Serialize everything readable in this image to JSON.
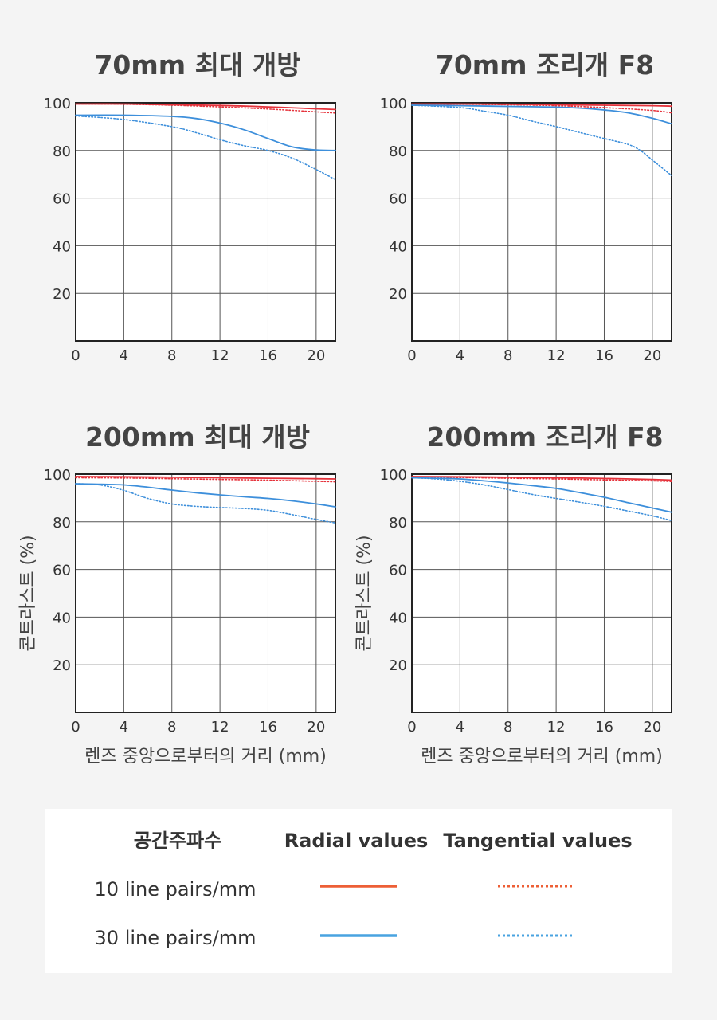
{
  "chart_data": [
    {
      "type": "line",
      "title": "70mm 최대 개방",
      "xlabel": "",
      "ylabel": "",
      "xlim": [
        0,
        21.6
      ],
      "ylim": [
        0,
        100
      ],
      "xticks": [
        0,
        4,
        8,
        12,
        16,
        20
      ],
      "yticks": [
        20,
        40,
        60,
        80,
        100
      ],
      "grid": true,
      "series": [
        {
          "key": "r10",
          "x": [
            0,
            4,
            8,
            12,
            16,
            20,
            21.6
          ],
          "y": [
            99.5,
            99.5,
            99.2,
            98.9,
            98.3,
            97.5,
            97.2
          ]
        },
        {
          "key": "t10",
          "x": [
            0,
            4,
            8,
            12,
            16,
            20,
            21.6
          ],
          "y": [
            99.5,
            99.4,
            99.0,
            98.3,
            97.4,
            96.2,
            95.7
          ]
        },
        {
          "key": "r30",
          "x": [
            0,
            4,
            8,
            10,
            12,
            14,
            16,
            18,
            20,
            21.6
          ],
          "y": [
            94.8,
            94.8,
            94.3,
            93.4,
            91.5,
            88.7,
            85.0,
            81.5,
            80.2,
            80.0
          ]
        },
        {
          "key": "t30",
          "x": [
            0,
            4,
            8,
            10,
            12,
            14,
            16,
            18,
            20,
            21.6
          ],
          "y": [
            94.5,
            93.0,
            90.0,
            87.5,
            84.5,
            82.0,
            80.0,
            76.8,
            72.0,
            67.8
          ]
        }
      ]
    },
    {
      "type": "line",
      "title": "70mm 조리개 F8",
      "xlabel": "",
      "ylabel": "",
      "xlim": [
        0,
        21.6
      ],
      "ylim": [
        0,
        100
      ],
      "xticks": [
        0,
        4,
        8,
        12,
        16,
        20
      ],
      "yticks": [
        20,
        40,
        60,
        80,
        100
      ],
      "grid": true,
      "series": [
        {
          "key": "r10",
          "x": [
            0,
            4,
            8,
            12,
            16,
            20,
            21.6
          ],
          "y": [
            99.5,
            99.5,
            99.4,
            99.2,
            99.0,
            98.8,
            98.6
          ]
        },
        {
          "key": "t10",
          "x": [
            0,
            4,
            8,
            12,
            16,
            20,
            21.6
          ],
          "y": [
            99.5,
            99.4,
            99.2,
            98.8,
            98.0,
            96.8,
            95.8
          ]
        },
        {
          "key": "r30",
          "x": [
            0,
            4,
            8,
            12,
            14,
            16,
            18,
            20,
            21.6
          ],
          "y": [
            99.0,
            98.8,
            98.5,
            98.2,
            97.8,
            97.0,
            95.8,
            93.5,
            91.2
          ]
        },
        {
          "key": "t30",
          "x": [
            0,
            4,
            6,
            8,
            10,
            12,
            14,
            16,
            18,
            19,
            20,
            21.6
          ],
          "y": [
            99.0,
            98.0,
            96.5,
            94.8,
            92.3,
            90.0,
            87.5,
            85.0,
            82.5,
            80.0,
            76.0,
            69.5
          ]
        }
      ]
    },
    {
      "type": "line",
      "title": "200mm 최대 개방",
      "xlabel": "렌즈 중앙으로부터의 거리 (mm)",
      "ylabel": "콘트라스트 (%)",
      "xlim": [
        0,
        21.6
      ],
      "ylim": [
        0,
        100
      ],
      "xticks": [
        0,
        4,
        8,
        12,
        16,
        20
      ],
      "yticks": [
        20,
        40,
        60,
        80,
        100
      ],
      "grid": true,
      "series": [
        {
          "key": "r10",
          "x": [
            0,
            4,
            8,
            12,
            16,
            20,
            21.6
          ],
          "y": [
            99.0,
            98.9,
            98.7,
            98.5,
            98.3,
            98.1,
            98.0
          ]
        },
        {
          "key": "t10",
          "x": [
            0,
            4,
            8,
            12,
            16,
            20,
            21.6
          ],
          "y": [
            98.5,
            98.4,
            98.1,
            97.8,
            97.5,
            97.0,
            96.8
          ]
        },
        {
          "key": "r30",
          "x": [
            0,
            2,
            4,
            6,
            8,
            10,
            12,
            14,
            16,
            18,
            20,
            21.6
          ],
          "y": [
            96.0,
            95.8,
            95.5,
            94.5,
            93.3,
            92.2,
            91.3,
            90.5,
            89.8,
            88.8,
            87.5,
            86.3
          ]
        },
        {
          "key": "t30",
          "x": [
            0,
            2,
            4,
            6,
            8,
            10,
            12,
            14,
            16,
            18,
            20,
            21.6
          ],
          "y": [
            96.0,
            95.5,
            93.2,
            89.8,
            87.5,
            86.5,
            86.0,
            85.6,
            84.8,
            83.0,
            81.0,
            79.5
          ]
        }
      ]
    },
    {
      "type": "line",
      "title": "200mm 조리개 F8",
      "xlabel": "렌즈 중앙으로부터의 거리 (mm)",
      "ylabel": "콘트라스트 (%)",
      "xlim": [
        0,
        21.6
      ],
      "ylim": [
        0,
        100
      ],
      "xticks": [
        0,
        4,
        8,
        12,
        16,
        20
      ],
      "yticks": [
        20,
        40,
        60,
        80,
        100
      ],
      "grid": true,
      "series": [
        {
          "key": "r10",
          "x": [
            0,
            4,
            8,
            12,
            16,
            20,
            21.6
          ],
          "y": [
            99.0,
            98.9,
            98.7,
            98.5,
            98.2,
            97.8,
            97.5
          ]
        },
        {
          "key": "t10",
          "x": [
            0,
            4,
            8,
            12,
            16,
            20,
            21.6
          ],
          "y": [
            98.8,
            98.6,
            98.3,
            98.0,
            97.6,
            97.2,
            96.9
          ]
        },
        {
          "key": "r30",
          "x": [
            0,
            2,
            4,
            6,
            8,
            10,
            12,
            14,
            16,
            18,
            20,
            21.6
          ],
          "y": [
            98.5,
            98.3,
            98.0,
            97.2,
            96.3,
            95.2,
            94.0,
            92.2,
            90.3,
            88.0,
            85.8,
            84.0
          ]
        },
        {
          "key": "t30",
          "x": [
            0,
            2,
            4,
            6,
            8,
            10,
            12,
            14,
            16,
            18,
            20,
            21.6
          ],
          "y": [
            98.5,
            98.0,
            97.0,
            95.5,
            93.5,
            91.5,
            89.8,
            88.2,
            86.5,
            84.5,
            82.5,
            80.5
          ]
        }
      ]
    }
  ],
  "series_styles": {
    "r10": {
      "color": "#e5323b",
      "dash": "solid"
    },
    "t10": {
      "color": "#e5323b",
      "dash": "dotted"
    },
    "r30": {
      "color": "#3d8fdb",
      "dash": "solid"
    },
    "t30": {
      "color": "#3d8fdb",
      "dash": "dotted"
    }
  },
  "legend": {
    "header_label": "공간주파수",
    "radial_label": "Radial values",
    "tangential_label": "Tangential values",
    "rows": [
      {
        "label": "10 line pairs/mm",
        "color": "#ed5f36"
      },
      {
        "label": "30 line pairs/mm",
        "color": "#49a3e0"
      }
    ]
  }
}
